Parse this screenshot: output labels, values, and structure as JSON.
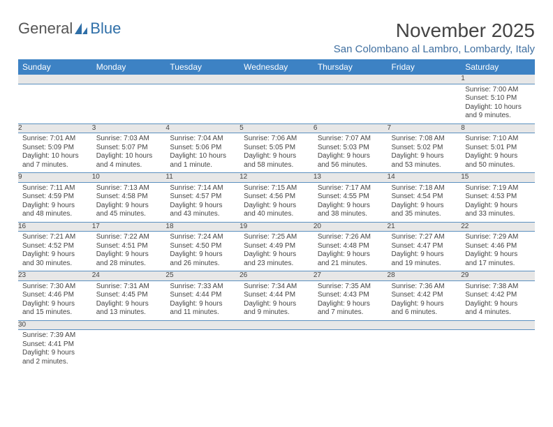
{
  "brand": {
    "part1": "General",
    "part2": "Blue"
  },
  "title": "November 2025",
  "subtitle": "San Colombano al Lambro, Lombardy, Italy",
  "columns": [
    "Sunday",
    "Monday",
    "Tuesday",
    "Wednesday",
    "Thursday",
    "Friday",
    "Saturday"
  ],
  "colors": {
    "header_bg": "#3d82c4",
    "header_text": "#ffffff",
    "daynum_bg": "#e7e7e7",
    "cell_border": "#5a8fbf",
    "subtitle_color": "#3f6fa0",
    "logo_blue": "#2f6fa8",
    "text_color": "#444444",
    "background": "#ffffff"
  },
  "first_weekday_index": 6,
  "days": [
    {
      "n": 1,
      "sunrise": "7:00 AM",
      "sunset": "5:10 PM",
      "daylight": "10 hours and 9 minutes."
    },
    {
      "n": 2,
      "sunrise": "7:01 AM",
      "sunset": "5:09 PM",
      "daylight": "10 hours and 7 minutes."
    },
    {
      "n": 3,
      "sunrise": "7:03 AM",
      "sunset": "5:07 PM",
      "daylight": "10 hours and 4 minutes."
    },
    {
      "n": 4,
      "sunrise": "7:04 AM",
      "sunset": "5:06 PM",
      "daylight": "10 hours and 1 minute."
    },
    {
      "n": 5,
      "sunrise": "7:06 AM",
      "sunset": "5:05 PM",
      "daylight": "9 hours and 58 minutes."
    },
    {
      "n": 6,
      "sunrise": "7:07 AM",
      "sunset": "5:03 PM",
      "daylight": "9 hours and 56 minutes."
    },
    {
      "n": 7,
      "sunrise": "7:08 AM",
      "sunset": "5:02 PM",
      "daylight": "9 hours and 53 minutes."
    },
    {
      "n": 8,
      "sunrise": "7:10 AM",
      "sunset": "5:01 PM",
      "daylight": "9 hours and 50 minutes."
    },
    {
      "n": 9,
      "sunrise": "7:11 AM",
      "sunset": "4:59 PM",
      "daylight": "9 hours and 48 minutes."
    },
    {
      "n": 10,
      "sunrise": "7:13 AM",
      "sunset": "4:58 PM",
      "daylight": "9 hours and 45 minutes."
    },
    {
      "n": 11,
      "sunrise": "7:14 AM",
      "sunset": "4:57 PM",
      "daylight": "9 hours and 43 minutes."
    },
    {
      "n": 12,
      "sunrise": "7:15 AM",
      "sunset": "4:56 PM",
      "daylight": "9 hours and 40 minutes."
    },
    {
      "n": 13,
      "sunrise": "7:17 AM",
      "sunset": "4:55 PM",
      "daylight": "9 hours and 38 minutes."
    },
    {
      "n": 14,
      "sunrise": "7:18 AM",
      "sunset": "4:54 PM",
      "daylight": "9 hours and 35 minutes."
    },
    {
      "n": 15,
      "sunrise": "7:19 AM",
      "sunset": "4:53 PM",
      "daylight": "9 hours and 33 minutes."
    },
    {
      "n": 16,
      "sunrise": "7:21 AM",
      "sunset": "4:52 PM",
      "daylight": "9 hours and 30 minutes."
    },
    {
      "n": 17,
      "sunrise": "7:22 AM",
      "sunset": "4:51 PM",
      "daylight": "9 hours and 28 minutes."
    },
    {
      "n": 18,
      "sunrise": "7:24 AM",
      "sunset": "4:50 PM",
      "daylight": "9 hours and 26 minutes."
    },
    {
      "n": 19,
      "sunrise": "7:25 AM",
      "sunset": "4:49 PM",
      "daylight": "9 hours and 23 minutes."
    },
    {
      "n": 20,
      "sunrise": "7:26 AM",
      "sunset": "4:48 PM",
      "daylight": "9 hours and 21 minutes."
    },
    {
      "n": 21,
      "sunrise": "7:27 AM",
      "sunset": "4:47 PM",
      "daylight": "9 hours and 19 minutes."
    },
    {
      "n": 22,
      "sunrise": "7:29 AM",
      "sunset": "4:46 PM",
      "daylight": "9 hours and 17 minutes."
    },
    {
      "n": 23,
      "sunrise": "7:30 AM",
      "sunset": "4:46 PM",
      "daylight": "9 hours and 15 minutes."
    },
    {
      "n": 24,
      "sunrise": "7:31 AM",
      "sunset": "4:45 PM",
      "daylight": "9 hours and 13 minutes."
    },
    {
      "n": 25,
      "sunrise": "7:33 AM",
      "sunset": "4:44 PM",
      "daylight": "9 hours and 11 minutes."
    },
    {
      "n": 26,
      "sunrise": "7:34 AM",
      "sunset": "4:44 PM",
      "daylight": "9 hours and 9 minutes."
    },
    {
      "n": 27,
      "sunrise": "7:35 AM",
      "sunset": "4:43 PM",
      "daylight": "9 hours and 7 minutes."
    },
    {
      "n": 28,
      "sunrise": "7:36 AM",
      "sunset": "4:42 PM",
      "daylight": "9 hours and 6 minutes."
    },
    {
      "n": 29,
      "sunrise": "7:38 AM",
      "sunset": "4:42 PM",
      "daylight": "9 hours and 4 minutes."
    },
    {
      "n": 30,
      "sunrise": "7:39 AM",
      "sunset": "4:41 PM",
      "daylight": "9 hours and 2 minutes."
    }
  ],
  "labels": {
    "sunrise": "Sunrise:",
    "sunset": "Sunset:",
    "daylight": "Daylight:"
  }
}
